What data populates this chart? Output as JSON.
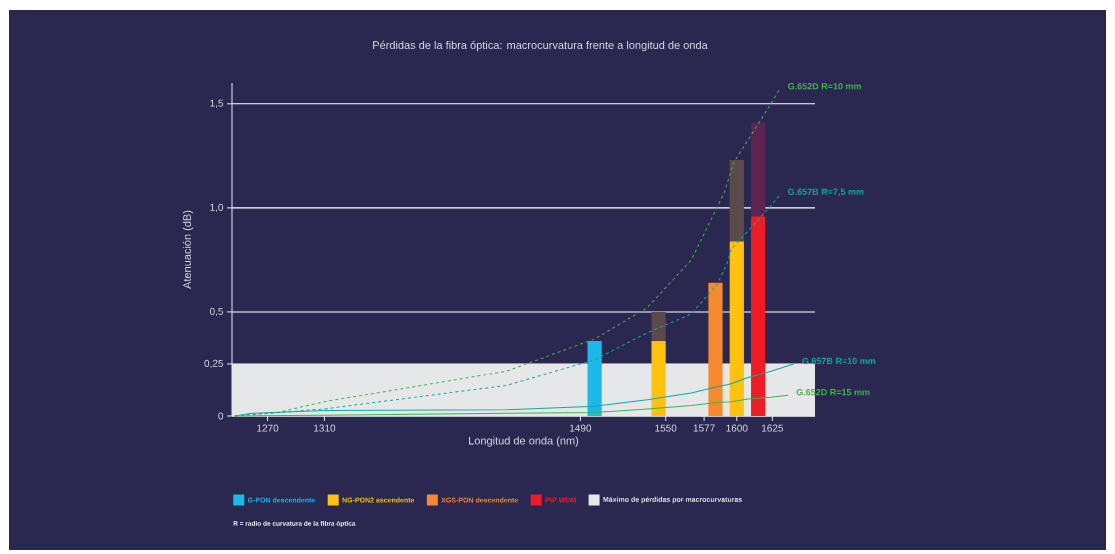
{
  "chart_data": {
    "type": "bar",
    "title": "Pérdidas de la fibra óptica: macrocurvatura frente a longitud de onda",
    "xlabel": "Longitud de onda (nm)",
    "ylabel": "Atenuación (dB)",
    "xlim": [
      1245,
      1655
    ],
    "ylim": [
      0,
      1.6
    ],
    "xticks": [
      1270,
      1310,
      1490,
      1550,
      1577,
      1600,
      1625
    ],
    "yticks": [
      0,
      {
        "value": 0.25,
        "label": "0,25"
      },
      {
        "value": 0.5,
        "label": "0,5"
      },
      {
        "value": 1,
        "label": "1,0"
      },
      {
        "value": 1.5,
        "label": "1,5"
      }
    ],
    "grid": "y",
    "legend": "bottom",
    "stacked": true,
    "x": [
      1500,
      1545,
      1585,
      1600,
      1615
    ],
    "bands": [
      {
        "axis": "y",
        "from": 0,
        "to": 0.25,
        "label": "Máximo de pérdidas por macrocurvaturas",
        "color": "#e6e7e8"
      }
    ],
    "series": [
      {
        "name": "G-PON descendente",
        "color": "#1cb8ea",
        "values": [
          0.36,
          null,
          null,
          null,
          null
        ]
      },
      {
        "name": "NG-PON2 ascendente",
        "color": "#ffc20e",
        "values": [
          null,
          0.36,
          null,
          0.84,
          null
        ]
      },
      {
        "name": "XGS-PON descendente",
        "color": "#f58a30",
        "values": [
          null,
          null,
          0.64,
          null,
          null
        ]
      },
      {
        "name": "PtP WDM",
        "color": "#ee1c25",
        "values": [
          null,
          null,
          null,
          null,
          0.96
        ]
      },
      {
        "values": [
          null,
          0.14,
          null,
          0.39,
          0.45
        ],
        "colors": [
          "#5a4b4a",
          "#5a4b4a",
          "#5a4b4a",
          "#5a4b4a",
          "#5c2450"
        ]
      },
      {
        "type": "line",
        "name": "G.652D R=10 mm",
        "color": "#3db54a",
        "line_style": "dashed",
        "x": [
          1247,
          1277,
          1310,
          1438,
          1500,
          1537,
          1568,
          1591,
          1598,
          1624,
          1630
        ],
        "values": [
          0,
          0.017,
          0.069,
          0.215,
          0.37,
          0.52,
          0.75,
          1.07,
          1.22,
          1.5,
          1.57
        ]
      },
      {
        "type": "line",
        "name": "G.657B R=7,5 mm",
        "color": "#10a8a0",
        "line_style": "dashed",
        "x": [
          1247,
          1310,
          1438,
          1500,
          1537,
          1568,
          1586,
          1593,
          1596,
          1608,
          1624,
          1630
        ],
        "values": [
          0,
          0.034,
          0.147,
          0.27,
          0.4,
          0.49,
          0.63,
          0.73,
          0.8,
          0.89,
          1.01,
          1.06
        ]
      },
      {
        "type": "line",
        "name": "G.657B R=10 mm",
        "color": "#10a8a0",
        "line_style": "solid",
        "x": [
          1247,
          1259,
          1310,
          1438,
          1500,
          1537,
          1568,
          1586,
          1593,
          1596,
          1608,
          1624,
          1640
        ],
        "values": [
          0,
          0.013,
          0.026,
          0.03,
          0.047,
          0.078,
          0.11,
          0.14,
          0.15,
          0.155,
          0.185,
          0.215,
          0.25
        ]
      },
      {
        "type": "line",
        "name": "G.652D R=15 mm",
        "color": "#3db54a",
        "line_style": "solid",
        "x": [
          1247,
          1310,
          1438,
          1500,
          1537,
          1568,
          1586,
          1596,
          1608,
          1624,
          1636
        ],
        "values": [
          0,
          0.004,
          0.013,
          0.017,
          0.034,
          0.05,
          0.065,
          0.069,
          0.082,
          0.09,
          0.1
        ]
      }
    ],
    "annotations": [
      "R = radio de curvatura de la fibra óptica"
    ]
  }
}
